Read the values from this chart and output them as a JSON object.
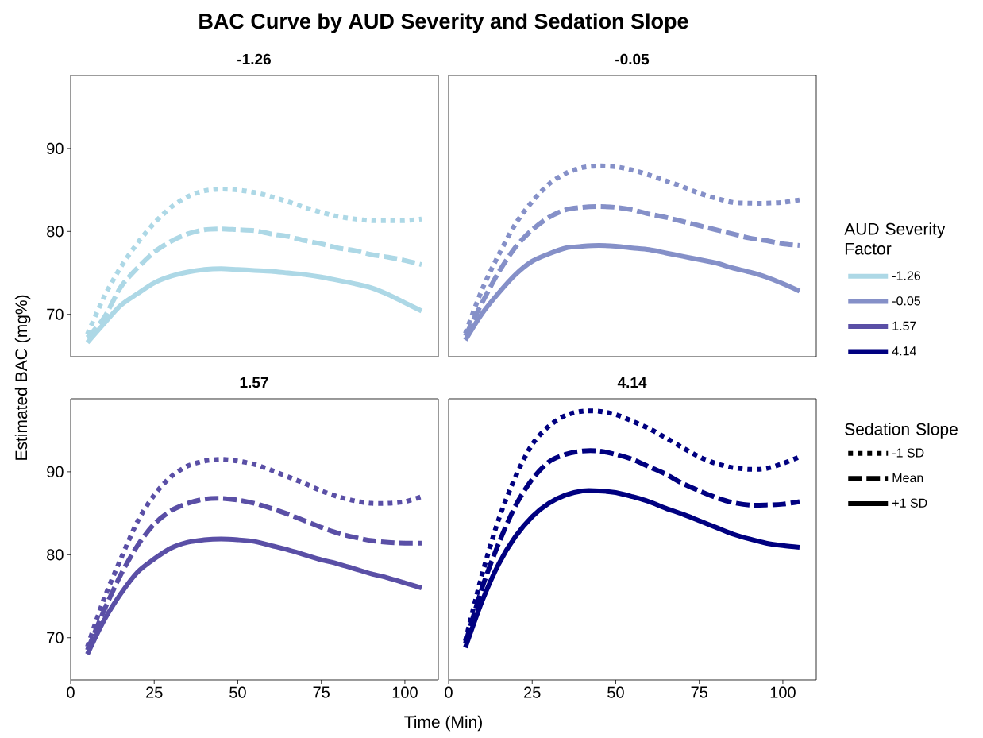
{
  "chart_data": [
    {
      "type": "line",
      "title": "-1.26",
      "annotations": [
        "BAC Curve by AUD Severity and Sedation Slope"
      ],
      "ylabel": "Estimated BAC (mg%)",
      "tick_labels": "y",
      "x": [
        5,
        10,
        15,
        20,
        25,
        30,
        35,
        40,
        45,
        50,
        55,
        60,
        65,
        70,
        75,
        80,
        85,
        90,
        95,
        100,
        105
      ],
      "xlim": [
        0,
        110
      ],
      "ylim": [
        64.9,
        98.8
      ],
      "yticks": [
        70,
        80,
        90
      ],
      "series": [
        {
          "color": "#add8e6",
          "line_style": "dotted",
          "values": [
            67.6,
            72.1,
            75.7,
            78.6,
            81.0,
            82.9,
            84.2,
            84.9,
            85.1,
            85.0,
            84.7,
            84.2,
            83.6,
            82.9,
            82.3,
            81.8,
            81.5,
            81.3,
            81.3,
            81.3,
            81.5
          ]
        },
        {
          "color": "#add8e6",
          "line_style": "dashed",
          "values": [
            67.2,
            69.6,
            73.3,
            75.6,
            77.5,
            78.8,
            79.7,
            80.2,
            80.3,
            80.2,
            80.1,
            79.7,
            79.4,
            78.9,
            78.5,
            78.0,
            77.7,
            77.2,
            76.9,
            76.5,
            76.0
          ]
        },
        {
          "color": "#add8e6",
          "line_style": "solid",
          "values": [
            66.6,
            68.9,
            71.1,
            72.5,
            73.8,
            74.6,
            75.1,
            75.4,
            75.5,
            75.4,
            75.3,
            75.2,
            75.0,
            74.8,
            74.5,
            74.1,
            73.7,
            73.2,
            72.4,
            71.4,
            70.4
          ]
        }
      ]
    },
    {
      "type": "line",
      "title": "-0.05",
      "tick_labels": false,
      "legend_title": "AUD Severity Factor",
      "x": [
        5,
        10,
        15,
        20,
        25,
        30,
        35,
        40,
        45,
        50,
        55,
        60,
        65,
        70,
        75,
        80,
        85,
        90,
        95,
        100,
        105
      ],
      "xlim": [
        0,
        110
      ],
      "ylim": [
        64.9,
        98.8
      ],
      "series": [
        {
          "color": "#8590c8",
          "line_style": "dotted",
          "values": [
            67.7,
            73.0,
            77.2,
            80.9,
            83.6,
            85.7,
            87.0,
            87.7,
            87.9,
            87.8,
            87.4,
            86.8,
            86.1,
            85.4,
            84.6,
            84.0,
            83.5,
            83.4,
            83.4,
            83.5,
            83.8
          ]
        },
        {
          "color": "#8590c8",
          "line_style": "dashed",
          "values": [
            67.4,
            71.4,
            75.1,
            78.1,
            80.2,
            81.7,
            82.6,
            82.9,
            83.0,
            82.9,
            82.6,
            82.1,
            81.7,
            81.2,
            80.7,
            80.2,
            79.7,
            79.2,
            78.9,
            78.5,
            78.3
          ]
        },
        {
          "color": "#8590c8",
          "line_style": "solid",
          "values": [
            66.9,
            70.1,
            72.6,
            74.8,
            76.4,
            77.3,
            78.0,
            78.2,
            78.3,
            78.2,
            78.0,
            77.8,
            77.4,
            77.0,
            76.6,
            76.2,
            75.6,
            75.1,
            74.5,
            73.7,
            72.8
          ]
        }
      ]
    },
    {
      "type": "line",
      "title": "1.57",
      "xlabel": "Time (Min)",
      "x": [
        5,
        10,
        15,
        20,
        25,
        30,
        35,
        40,
        45,
        50,
        55,
        60,
        65,
        70,
        75,
        80,
        85,
        90,
        95,
        100,
        105
      ],
      "xlim": [
        0,
        110
      ],
      "ylim": [
        64.9,
        98.8
      ],
      "xticks": [
        0,
        25,
        50,
        75,
        100
      ],
      "yticks": [
        70,
        80,
        90
      ],
      "series": [
        {
          "color": "#5a4fa6",
          "line_style": "dotted",
          "values": [
            68.9,
            74.7,
            79.5,
            84.0,
            87.2,
            89.4,
            90.7,
            91.3,
            91.5,
            91.3,
            90.9,
            90.2,
            89.4,
            88.6,
            87.7,
            87.0,
            86.5,
            86.2,
            86.2,
            86.4,
            87.0
          ]
        },
        {
          "color": "#5a4fa6",
          "line_style": "dashed",
          "values": [
            68.5,
            73.3,
            77.6,
            81.1,
            83.7,
            85.3,
            86.2,
            86.7,
            86.8,
            86.6,
            86.2,
            85.6,
            84.9,
            84.1,
            83.3,
            82.6,
            82.1,
            81.7,
            81.5,
            81.4,
            81.4
          ]
        },
        {
          "color": "#5a4fa6",
          "line_style": "solid",
          "values": [
            68.0,
            72.1,
            75.3,
            77.9,
            79.5,
            80.8,
            81.5,
            81.8,
            81.9,
            81.8,
            81.6,
            81.1,
            80.6,
            80.0,
            79.4,
            78.9,
            78.3,
            77.7,
            77.2,
            76.6,
            76.0
          ]
        }
      ]
    },
    {
      "type": "line",
      "title": "4.14",
      "tick_labels": "x",
      "legend": "right",
      "legend_title": "Sedation Slope",
      "x": [
        5,
        10,
        15,
        20,
        25,
        30,
        35,
        40,
        45,
        50,
        55,
        60,
        65,
        70,
        75,
        80,
        85,
        90,
        95,
        100,
        105
      ],
      "xlim": [
        0,
        110
      ],
      "ylim": [
        64.9,
        98.8
      ],
      "xticks": [
        0,
        25,
        50,
        75,
        100
      ],
      "series": [
        {
          "name": "-1 SD",
          "color": "#000080",
          "line_style": "dotted",
          "values": [
            69.6,
            77.6,
            84.3,
            89.4,
            93.3,
            95.5,
            96.8,
            97.3,
            97.3,
            96.9,
            96.1,
            95.2,
            94.1,
            92.9,
            91.8,
            91.0,
            90.5,
            90.3,
            90.4,
            91.0,
            91.8
          ]
        },
        {
          "name": "Mean",
          "color": "#000080",
          "line_style": "dashed",
          "values": [
            69.3,
            76.0,
            81.4,
            85.9,
            89.1,
            91.2,
            92.1,
            92.5,
            92.5,
            92.1,
            91.5,
            90.6,
            89.7,
            88.6,
            87.7,
            86.9,
            86.3,
            86.0,
            86.0,
            86.1,
            86.4
          ]
        },
        {
          "name": "+1 SD",
          "color": "#000080",
          "line_style": "solid",
          "values": [
            68.8,
            74.4,
            78.9,
            82.2,
            84.6,
            86.2,
            87.2,
            87.7,
            87.7,
            87.5,
            87.0,
            86.4,
            85.6,
            84.9,
            84.1,
            83.3,
            82.5,
            81.9,
            81.4,
            81.1,
            80.9
          ]
        }
      ]
    }
  ]
}
